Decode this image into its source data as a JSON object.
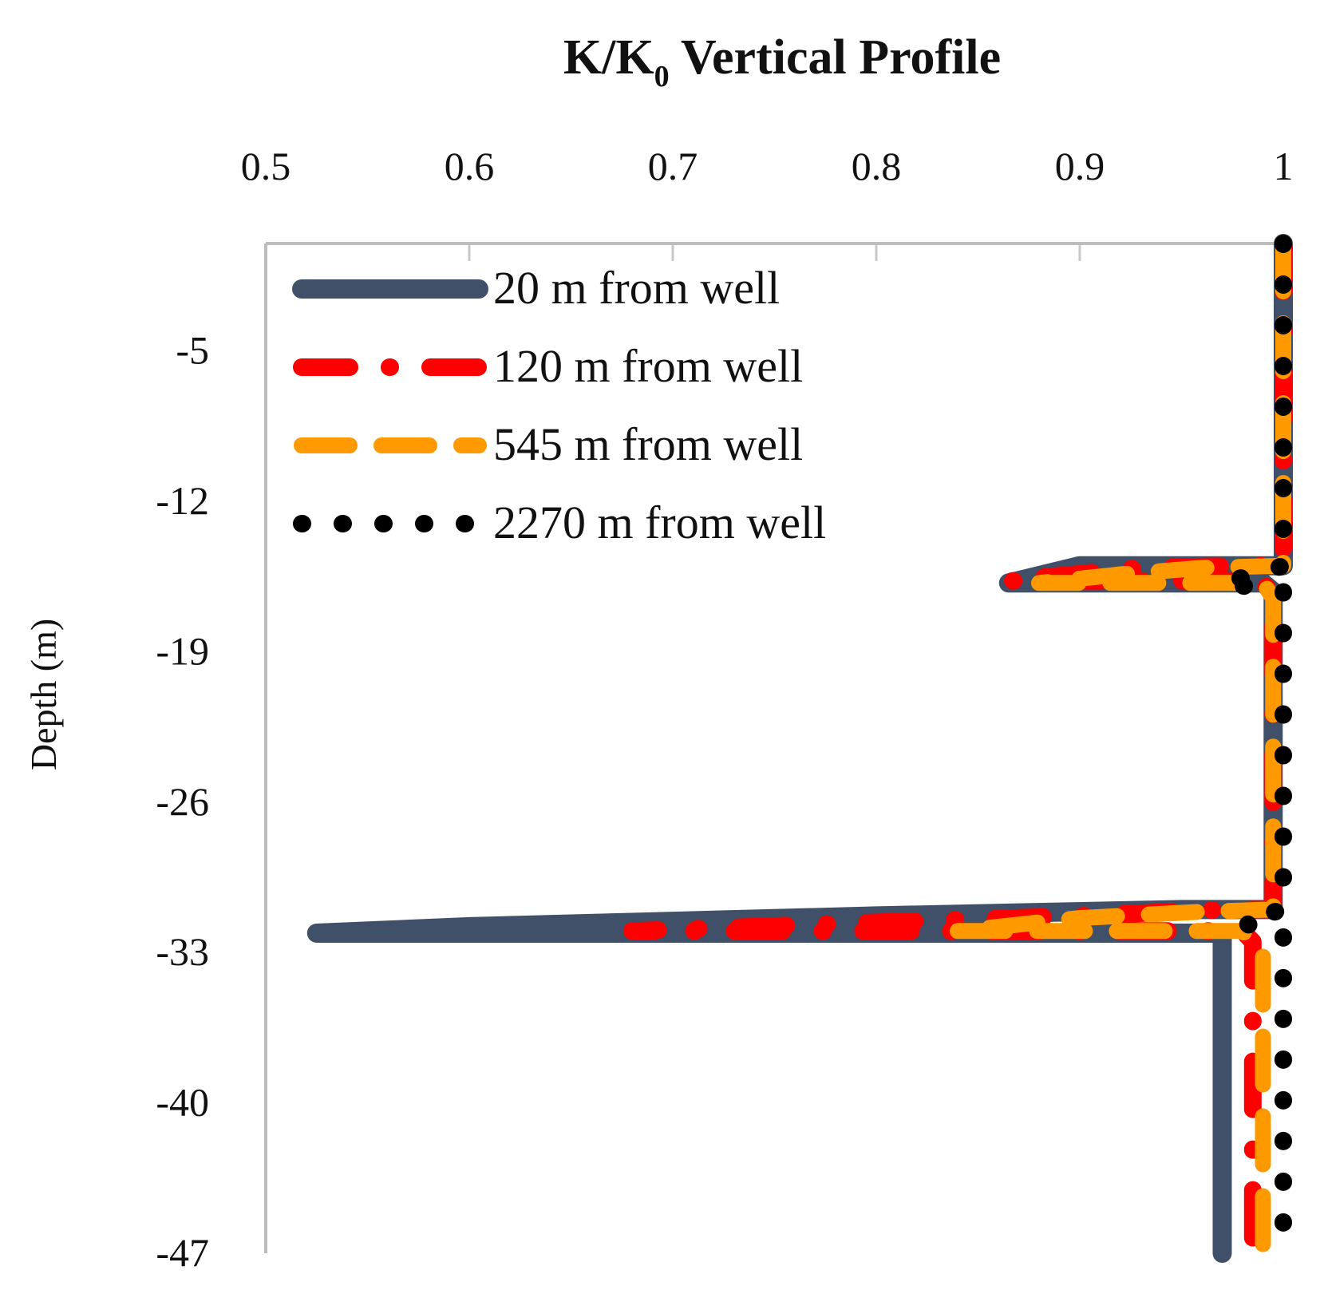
{
  "chart_data": {
    "type": "line",
    "title": "K/K0 Vertical Profile",
    "title_main": "K/K",
    "title_sub": "0",
    "title_rest": " Vertical Profile",
    "xlabel": "",
    "ylabel": "Depth (m)",
    "x_axis_position": "top",
    "xlim": [
      0.5,
      1.0
    ],
    "ylim": [
      -47,
      0
    ],
    "x_ticks": [
      0.5,
      0.6,
      0.7,
      0.8,
      0.9,
      1.0
    ],
    "x_tick_labels": [
      "0.5",
      "0.6",
      "0.7",
      "0.8",
      "0.9",
      "1"
    ],
    "y_ticks": [
      -5,
      -12,
      -19,
      -26,
      -33,
      -40,
      -47
    ],
    "y_tick_labels": [
      "-5",
      "-12",
      "-19",
      "-26",
      "-33",
      "-40",
      "-47"
    ],
    "grid": "vertical",
    "legend_position": "top-left",
    "series": [
      {
        "name": "20 m from well",
        "color": "#3F5068",
        "style": "solid",
        "points": [
          [
            1.0,
            0
          ],
          [
            1.0,
            -15
          ],
          [
            0.98,
            -15
          ],
          [
            0.9,
            -15
          ],
          [
            0.865,
            -15.8
          ],
          [
            0.99,
            -15.8
          ],
          [
            0.995,
            -16.2
          ],
          [
            0.995,
            -31
          ],
          [
            0.95,
            -31
          ],
          [
            0.8,
            -31.3
          ],
          [
            0.6,
            -31.8
          ],
          [
            0.525,
            -32.1
          ],
          [
            0.97,
            -32.1
          ],
          [
            0.97,
            -47
          ]
        ]
      },
      {
        "name": "120 m from well",
        "color": "#FF0000",
        "style": "dash-dot",
        "points": [
          [
            1.0,
            0
          ],
          [
            1.0,
            -15
          ],
          [
            0.985,
            -15
          ],
          [
            0.93,
            -15.1
          ],
          [
            0.865,
            -15.7
          ],
          [
            0.99,
            -15.7
          ],
          [
            0.995,
            -16.5
          ],
          [
            0.995,
            -31
          ],
          [
            0.97,
            -31
          ],
          [
            0.9,
            -31.3
          ],
          [
            0.8,
            -31.6
          ],
          [
            0.68,
            -32.0
          ],
          [
            0.98,
            -32.0
          ],
          [
            0.985,
            -32.5
          ],
          [
            0.985,
            -47
          ]
        ]
      },
      {
        "name": "545 m from well",
        "color": "#FF9900",
        "style": "long-dash",
        "points": [
          [
            1.0,
            0
          ],
          [
            1.0,
            -15
          ],
          [
            0.96,
            -15.1
          ],
          [
            0.92,
            -15.4
          ],
          [
            0.88,
            -15.8
          ],
          [
            0.99,
            -15.8
          ],
          [
            0.995,
            -16.5
          ],
          [
            0.995,
            -31
          ],
          [
            0.96,
            -31.1
          ],
          [
            0.9,
            -31.4
          ],
          [
            0.84,
            -32.0
          ],
          [
            0.98,
            -32.0
          ],
          [
            0.99,
            -33
          ],
          [
            0.99,
            -47
          ]
        ]
      },
      {
        "name": "2270 m from well",
        "color": "#000000",
        "style": "dotted",
        "points": [
          [
            1.0,
            0
          ],
          [
            1.0,
            -15
          ],
          [
            0.99,
            -15.3
          ],
          [
            0.97,
            -15.8
          ],
          [
            1.0,
            -16.2
          ],
          [
            1.0,
            -31
          ],
          [
            0.98,
            -31.5
          ],
          [
            0.99,
            -32.2
          ],
          [
            1.0,
            -32.2
          ],
          [
            1.0,
            -47
          ]
        ]
      }
    ]
  }
}
